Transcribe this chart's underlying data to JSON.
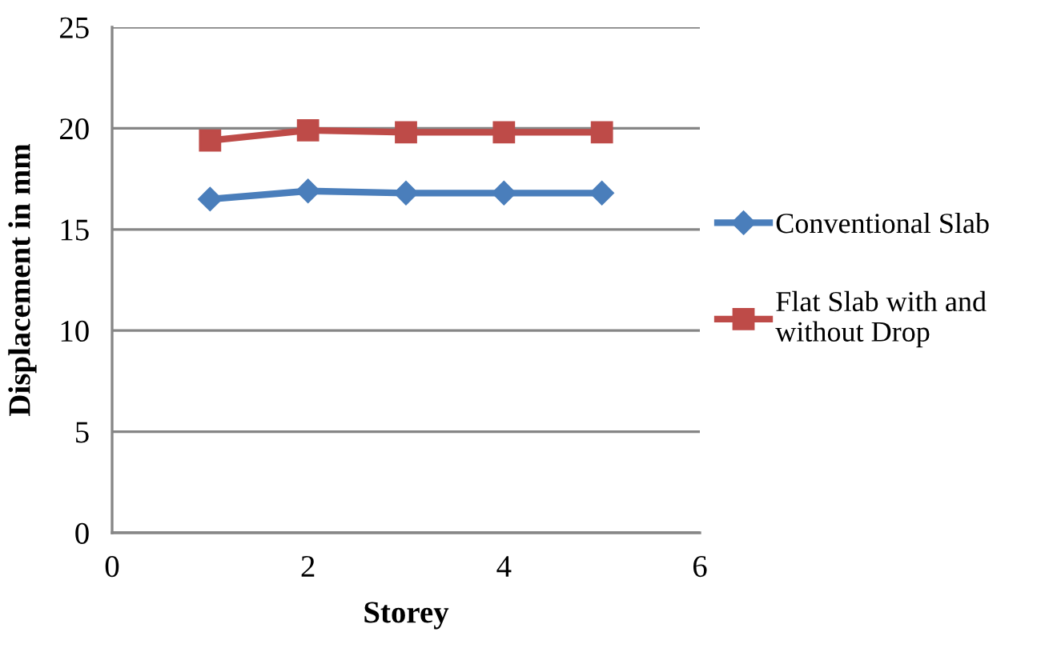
{
  "chart_data": {
    "type": "line",
    "xlabel": "Storey",
    "ylabel": "Displacement in mm",
    "x": [
      1,
      2,
      3,
      4,
      5
    ],
    "series": [
      {
        "name": "Conventional Slab",
        "color": "#4a7ebb",
        "marker": "diamond",
        "values": [
          16.5,
          16.9,
          16.8,
          16.8,
          16.8
        ]
      },
      {
        "name": "Flat Slab with and without Drop",
        "color": "#be4b48",
        "marker": "square",
        "values": [
          19.4,
          19.9,
          19.8,
          19.8,
          19.8
        ]
      }
    ],
    "xlim": [
      0,
      6
    ],
    "xticks": [
      0,
      2,
      4,
      6
    ],
    "ylim": [
      0,
      25
    ],
    "yticks": [
      0,
      5,
      10,
      15,
      20,
      25
    ],
    "grid": "y",
    "legend": "right",
    "line_style": "solid"
  }
}
